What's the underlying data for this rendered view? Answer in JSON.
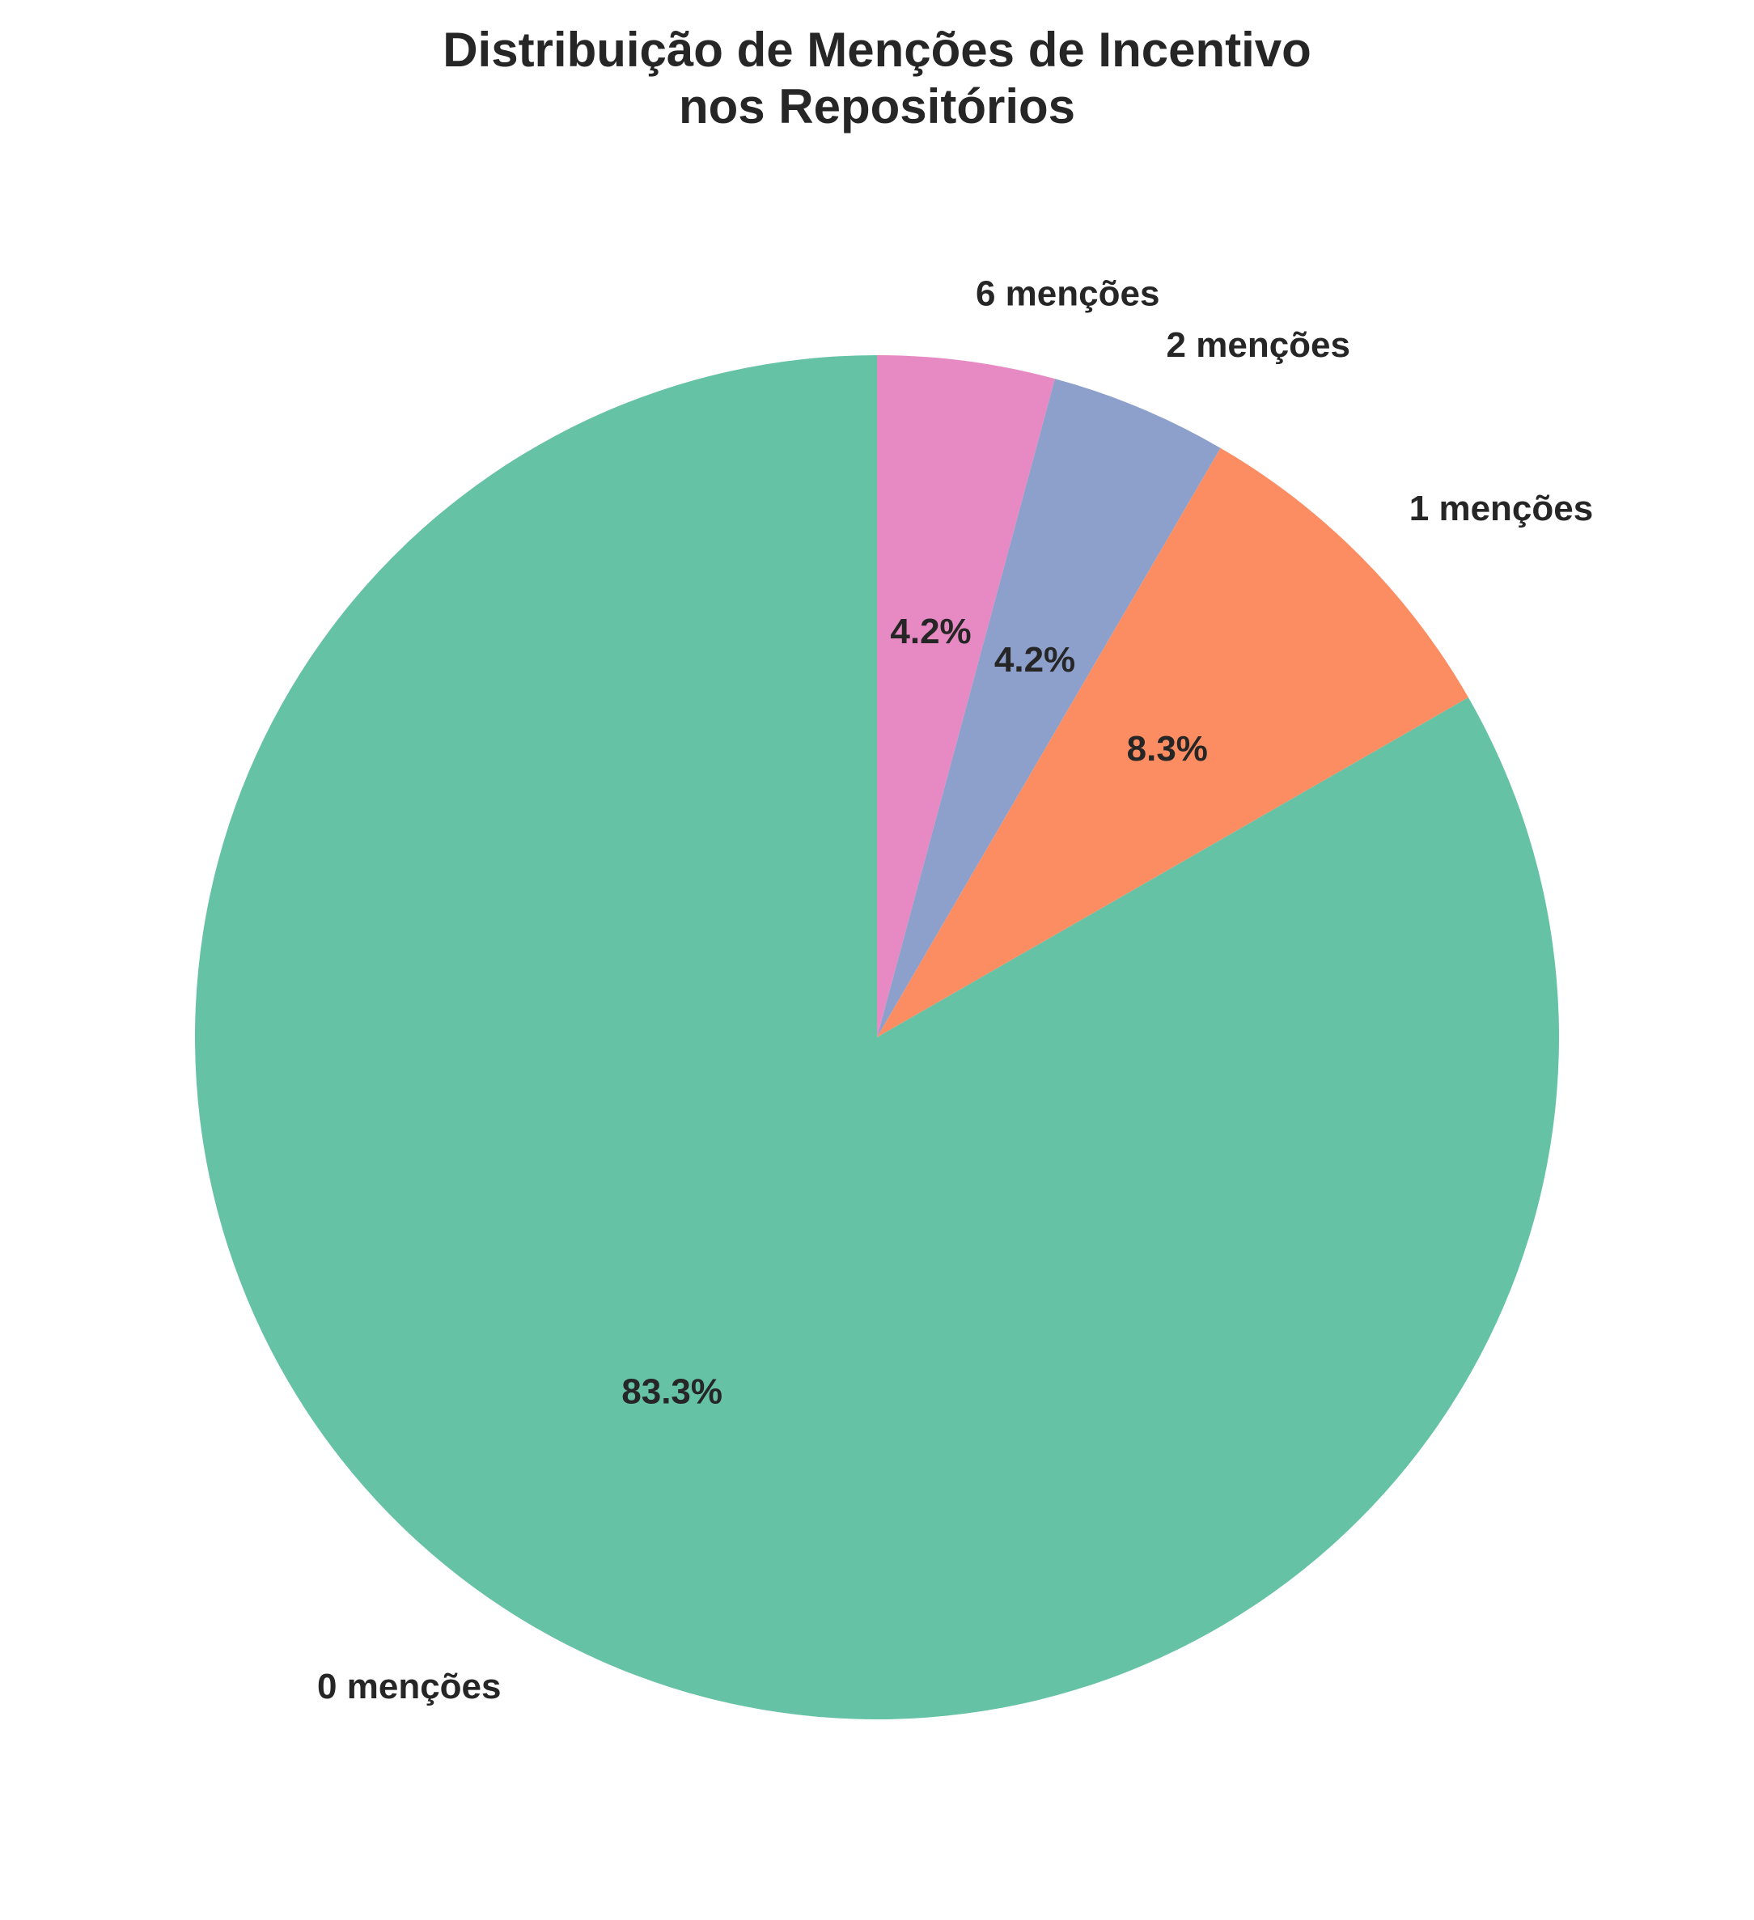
{
  "chart_data": {
    "type": "pie",
    "title_lines": [
      "Distribuição de Menções de Incentivo",
      "nos Repositórios"
    ],
    "start_angle_deg": 90,
    "direction": "clockwise",
    "slices": [
      {
        "label": "6 menções",
        "value": 4.2,
        "pct_label": "4.2%",
        "color": "#e78ac3"
      },
      {
        "label": "2 menções",
        "value": 4.2,
        "pct_label": "4.2%",
        "color": "#8da0cb"
      },
      {
        "label": "1 menções",
        "value": 8.3,
        "pct_label": "8.3%",
        "color": "#fc8d62"
      },
      {
        "label": "0 menções",
        "value": 83.3,
        "pct_label": "83.3%",
        "color": "#66c2a5"
      }
    ]
  }
}
